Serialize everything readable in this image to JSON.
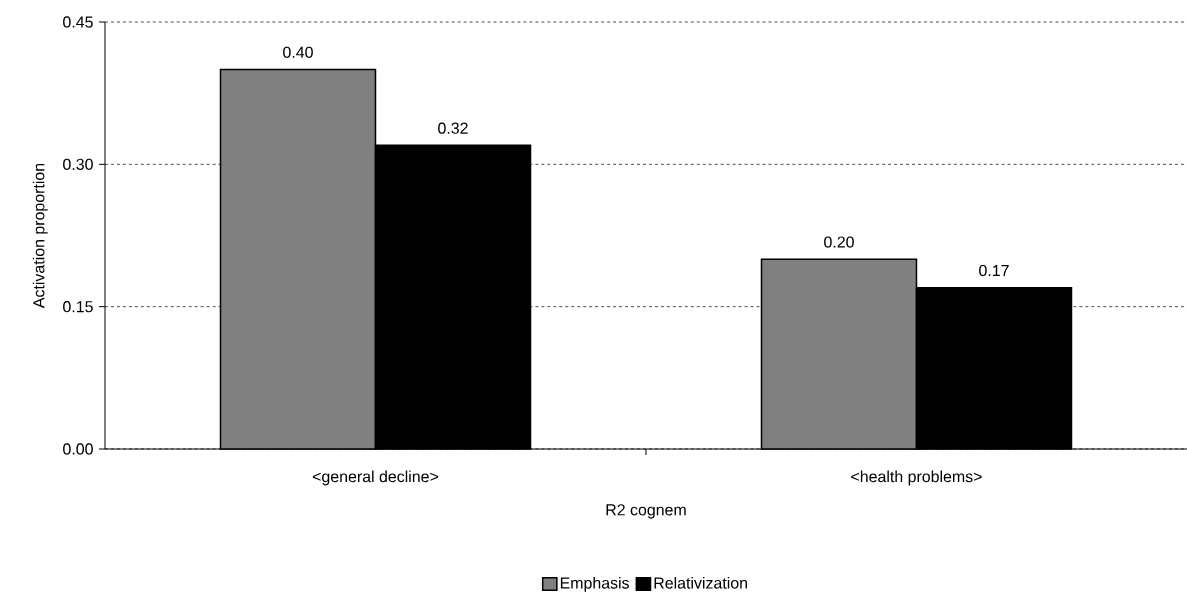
{
  "chart_data": {
    "type": "bar",
    "xlabel": "R2 cognem",
    "ylabel": "Activation proportion",
    "categories": [
      "<general decline>",
      "<health problems>"
    ],
    "series": [
      {
        "name": "Emphasis",
        "color": "#808080",
        "values": [
          0.4,
          0.2
        ],
        "value_labels": [
          "0.40",
          "0.20"
        ]
      },
      {
        "name": "Relativization",
        "color": "#000000",
        "values": [
          0.32,
          0.17
        ],
        "value_labels": [
          "0.32",
          "0.17"
        ]
      }
    ],
    "ylim": [
      0,
      0.45
    ],
    "yticks": [
      {
        "value": 0,
        "label": "0.00"
      },
      {
        "value": 0.15,
        "label": "0.15"
      },
      {
        "value": 0.3,
        "label": "0.30"
      },
      {
        "value": 0.45,
        "label": "0.45"
      }
    ],
    "grid": "y",
    "legend": "bottom"
  }
}
